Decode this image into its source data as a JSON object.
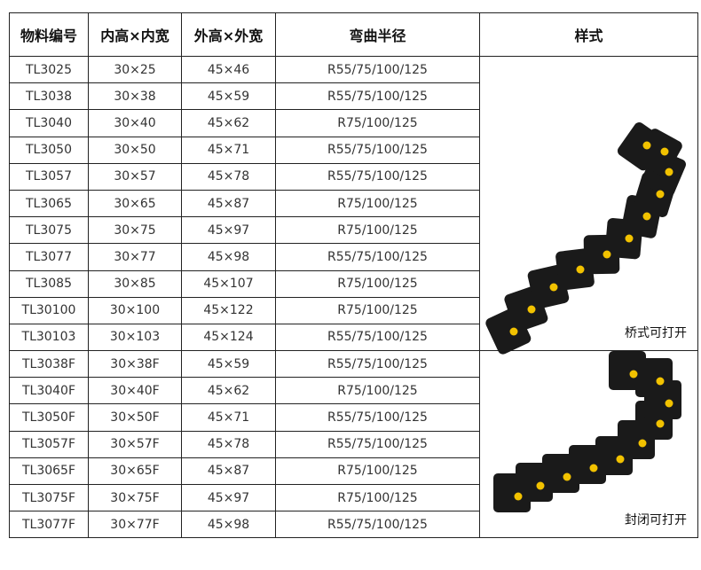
{
  "headers": [
    "物料编号",
    "内高×内宽",
    "外高×外宽",
    "弯曲半径",
    "样式"
  ],
  "rows": [
    [
      "TL3025",
      "30×25",
      "45×46",
      "R55/75/100/125"
    ],
    [
      "TL3038",
      "30×38",
      "45×59",
      "R55/75/100/125"
    ],
    [
      "TL3040",
      "30×40",
      "45×62",
      "R75/100/125"
    ],
    [
      "TL3050",
      "30×50",
      "45×71",
      "R55/75/100/125"
    ],
    [
      "TL3057",
      "30×57",
      "45×78",
      "R55/75/100/125"
    ],
    [
      "TL3065",
      "30×65",
      "45×87",
      "R75/100/125"
    ],
    [
      "TL3075",
      "30×75",
      "45×97",
      "R75/100/125"
    ],
    [
      "TL3077",
      "30×77",
      "45×98",
      "R55/75/100/125"
    ],
    [
      "TL3085",
      "30×85",
      "45×107",
      "R75/100/125"
    ],
    [
      "TL30100",
      "30×100",
      "45×122",
      "R75/100/125"
    ],
    [
      "TL30103",
      "30×103",
      "45×124",
      "R55/75/100/125"
    ],
    [
      "TL3038F",
      "30×38F",
      "45×59",
      "R55/75/100/125"
    ],
    [
      "TL3040F",
      "30×40F",
      "45×62",
      "R75/100/125"
    ],
    [
      "TL3050F",
      "30×50F",
      "45×71",
      "R55/75/100/125"
    ],
    [
      "TL3057F",
      "30×57F",
      "45×78",
      "R55/75/100/125"
    ],
    [
      "TL3065F",
      "30×65F",
      "45×87",
      "R75/100/125"
    ],
    [
      "TL3075F",
      "30×75F",
      "45×97",
      "R75/100/125"
    ],
    [
      "TL3077F",
      "30×77F",
      "45×98",
      "R55/75/100/125"
    ]
  ],
  "styles": [
    {
      "caption": "桥式可打开",
      "rowspan": 11
    },
    {
      "caption": "封闭可打开",
      "rowspan": 7
    }
  ],
  "colors": {
    "chain": "#1a1a1a",
    "pin": "#f2c200"
  }
}
